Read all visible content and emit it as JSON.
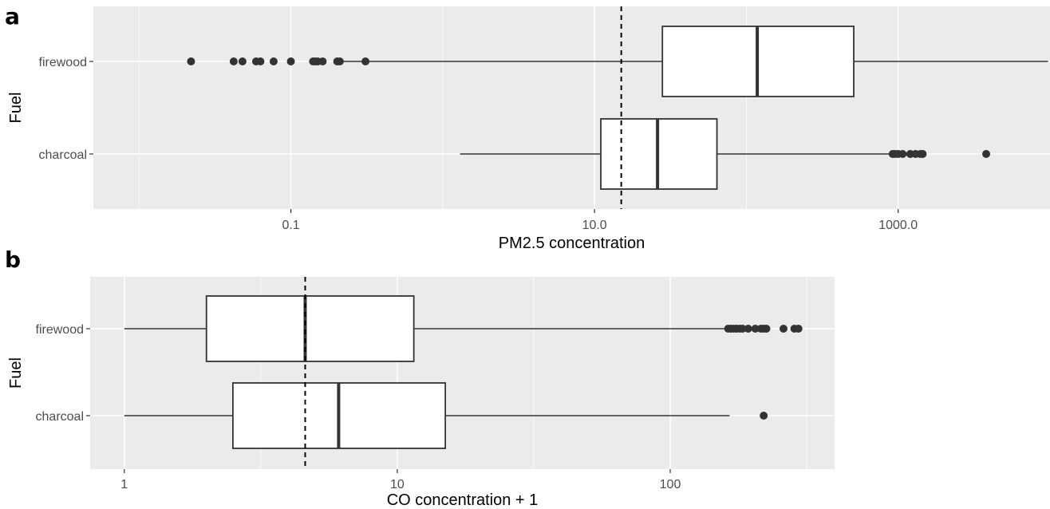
{
  "chart_data": [
    {
      "panel_label": "a",
      "type": "boxplot",
      "orientation": "horizontal",
      "xlabel": "PM2.5 concentration",
      "ylabel": "Fuel",
      "x_scale": "log10",
      "xlim": [
        0.005,
        10000
      ],
      "x_ticks": [
        0.1,
        10,
        1000
      ],
      "x_tick_labels": [
        "0.1",
        "10.0",
        "1000.0"
      ],
      "x_minor_ticks": [
        0.01,
        1,
        100
      ],
      "reference_line": 15,
      "reference_line_style": "dashed",
      "categories": [
        "firewood",
        "charcoal"
      ],
      "boxes": [
        {
          "category": "firewood",
          "whisker_low": 0.2,
          "q1": 28,
          "median": 118,
          "q3": 510,
          "whisker_high": 9700,
          "outliers": [
            0.022,
            0.042,
            0.048,
            0.059,
            0.063,
            0.077,
            0.1,
            0.14,
            0.145,
            0.15,
            0.162,
            0.202,
            0.21,
            0.31
          ]
        },
        {
          "category": "charcoal",
          "whisker_low": 1.3,
          "q1": 11,
          "median": 26,
          "q3": 64,
          "whisker_high": 870,
          "outliers": [
            920,
            950,
            1000,
            1070,
            1200,
            1300,
            1400,
            1450,
            3800
          ]
        }
      ],
      "grid": true,
      "legend": "none"
    },
    {
      "panel_label": "b",
      "type": "boxplot",
      "orientation": "horizontal",
      "xlabel": "CO concentration + 1",
      "ylabel": "Fuel",
      "x_scale": "log10",
      "xlim": [
        0.75,
        400
      ],
      "x_ticks": [
        1,
        10,
        100
      ],
      "x_tick_labels": [
        "1",
        "10",
        "100"
      ],
      "x_minor_ticks": [
        3.16,
        31.6,
        316
      ],
      "reference_line": 4.6,
      "reference_line_style": "dashed",
      "categories": [
        "firewood",
        "charcoal"
      ],
      "boxes": [
        {
          "category": "firewood",
          "whisker_low": 1,
          "q1": 2,
          "median": 4.6,
          "q3": 11.5,
          "whisker_high": 158,
          "outliers": [
            163,
            167,
            171,
            175,
            180,
            184,
            193,
            205,
            215,
            220,
            225,
            260,
            285,
            295
          ]
        },
        {
          "category": "charcoal",
          "whisker_low": 1,
          "q1": 2.5,
          "median": 6.1,
          "q3": 15,
          "whisker_high": 165,
          "outliers": [
            220
          ]
        }
      ],
      "grid": true,
      "legend": "none"
    }
  ],
  "colors": {
    "panel_background": "#ebebeb",
    "gridline": "#ffffff",
    "box_fill": "#ffffff",
    "box_stroke": "#333333",
    "outlier": "#333333",
    "reference_line": "#000000",
    "tick_text": "#4d4d4d"
  }
}
